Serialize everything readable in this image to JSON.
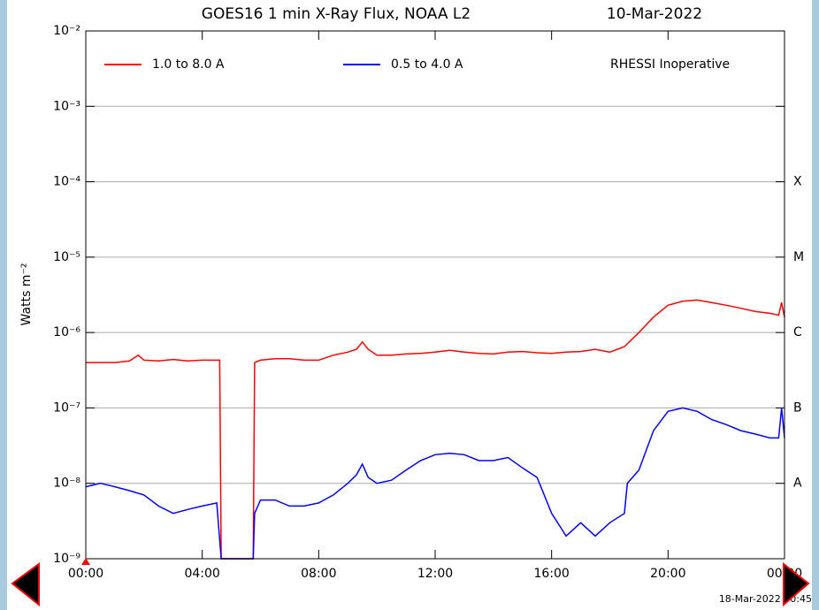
{
  "chart_data": {
    "type": "line",
    "title": "GOES16 1 min X-Ray Flux, NOAA L2",
    "date": "10-Mar-2022",
    "y_label": "Watts m⁻²",
    "annotation": "RHESSI Inoperative",
    "timestamp": "18-Mar-2022 00:45",
    "yscale": "log",
    "grid": true,
    "xlim": [
      0,
      24
    ],
    "xticks": [
      {
        "value": 0,
        "label": "00:00"
      },
      {
        "value": 4,
        "label": "04:00"
      },
      {
        "value": 8,
        "label": "08:00"
      },
      {
        "value": 12,
        "label": "12:00"
      },
      {
        "value": 16,
        "label": "16:00"
      },
      {
        "value": 20,
        "label": "20:00"
      },
      {
        "value": 24,
        "label": "00:00"
      }
    ],
    "ylim": [
      1e-09,
      0.01
    ],
    "yticks": [
      {
        "value": 0.01,
        "label": "10⁻²"
      },
      {
        "value": 0.001,
        "label": "10⁻³"
      },
      {
        "value": 0.0001,
        "label": "10⁻⁴"
      },
      {
        "value": 1e-05,
        "label": "10⁻⁵"
      },
      {
        "value": 1e-06,
        "label": "10⁻⁶"
      },
      {
        "value": 1e-07,
        "label": "10⁻⁷"
      },
      {
        "value": 1e-08,
        "label": "10⁻⁸"
      },
      {
        "value": 1e-09,
        "label": "10⁻⁹"
      }
    ],
    "class_labels": [
      {
        "value": 0.0001,
        "label": "X"
      },
      {
        "value": 1e-05,
        "label": "M"
      },
      {
        "value": 1e-06,
        "label": "C"
      },
      {
        "value": 1e-07,
        "label": "B"
      },
      {
        "value": 1e-08,
        "label": "A"
      }
    ],
    "series": [
      {
        "name": "1.0 to 8.0 A",
        "color": "#ff0000",
        "x": [
          0,
          0.5,
          1,
          1.5,
          1.8,
          2,
          2.5,
          3,
          3.5,
          4,
          4.6,
          4.65,
          5.75,
          5.8,
          6,
          6.5,
          7,
          7.5,
          8,
          8.5,
          9,
          9.3,
          9.5,
          9.7,
          10,
          10.5,
          11,
          11.5,
          12,
          12.5,
          13,
          13.5,
          14,
          14.5,
          15,
          15.5,
          16,
          16.5,
          17,
          17.5,
          18,
          18.5,
          19,
          19.5,
          20,
          20.5,
          21,
          21.5,
          22,
          22.5,
          23,
          23.5,
          23.8,
          23.9,
          24
        ],
        "values": [
          4e-07,
          4e-07,
          4e-07,
          4.2e-07,
          5e-07,
          4.3e-07,
          4.2e-07,
          4.4e-07,
          4.2e-07,
          4.3e-07,
          4.3e-07,
          1e-09,
          1e-09,
          4e-07,
          4.3e-07,
          4.5e-07,
          4.5e-07,
          4.3e-07,
          4.3e-07,
          5e-07,
          5.5e-07,
          6e-07,
          7.5e-07,
          6e-07,
          5e-07,
          5e-07,
          5.2e-07,
          5.3e-07,
          5.5e-07,
          5.8e-07,
          5.5e-07,
          5.3e-07,
          5.2e-07,
          5.5e-07,
          5.6e-07,
          5.4e-07,
          5.3e-07,
          5.5e-07,
          5.6e-07,
          6e-07,
          5.5e-07,
          6.5e-07,
          1e-06,
          1.6e-06,
          2.3e-06,
          2.6e-06,
          2.7e-06,
          2.5e-06,
          2.3e-06,
          2.1e-06,
          1.9e-06,
          1.8e-06,
          1.7e-06,
          2.5e-06,
          1.6e-06
        ]
      },
      {
        "name": "0.5 to 4.0 A",
        "color": "#0000ff",
        "x": [
          0,
          0.5,
          1,
          1.5,
          2,
          2.5,
          3,
          3.5,
          4,
          4.5,
          4.65,
          5.75,
          5.8,
          6,
          6.5,
          7,
          7.5,
          8,
          8.5,
          9,
          9.3,
          9.5,
          9.7,
          10,
          10.5,
          11,
          11.5,
          12,
          12.5,
          13,
          13.5,
          14,
          14.5,
          15,
          15.5,
          16,
          16.5,
          17,
          17.5,
          18,
          18.5,
          18.6,
          19,
          19.5,
          20,
          20.5,
          21,
          21.5,
          22,
          22.5,
          23,
          23.5,
          23.8,
          23.9,
          24
        ],
        "values": [
          9e-09,
          1e-08,
          9e-09,
          8e-09,
          7e-09,
          5e-09,
          4e-09,
          4.5e-09,
          5e-09,
          5.5e-09,
          1e-09,
          1e-09,
          4e-09,
          6e-09,
          6e-09,
          5e-09,
          5e-09,
          5.5e-09,
          7e-09,
          1e-08,
          1.3e-08,
          1.8e-08,
          1.2e-08,
          1e-08,
          1.1e-08,
          1.5e-08,
          2e-08,
          2.4e-08,
          2.5e-08,
          2.4e-08,
          2e-08,
          2e-08,
          2.2e-08,
          1.6e-08,
          1.2e-08,
          4e-09,
          2e-09,
          3e-09,
          2e-09,
          3e-09,
          4e-09,
          1e-08,
          1.5e-08,
          5e-08,
          9e-08,
          1e-07,
          9e-08,
          7e-08,
          6e-08,
          5e-08,
          4.5e-08,
          4e-08,
          4e-08,
          1e-07,
          4e-08
        ]
      }
    ]
  }
}
